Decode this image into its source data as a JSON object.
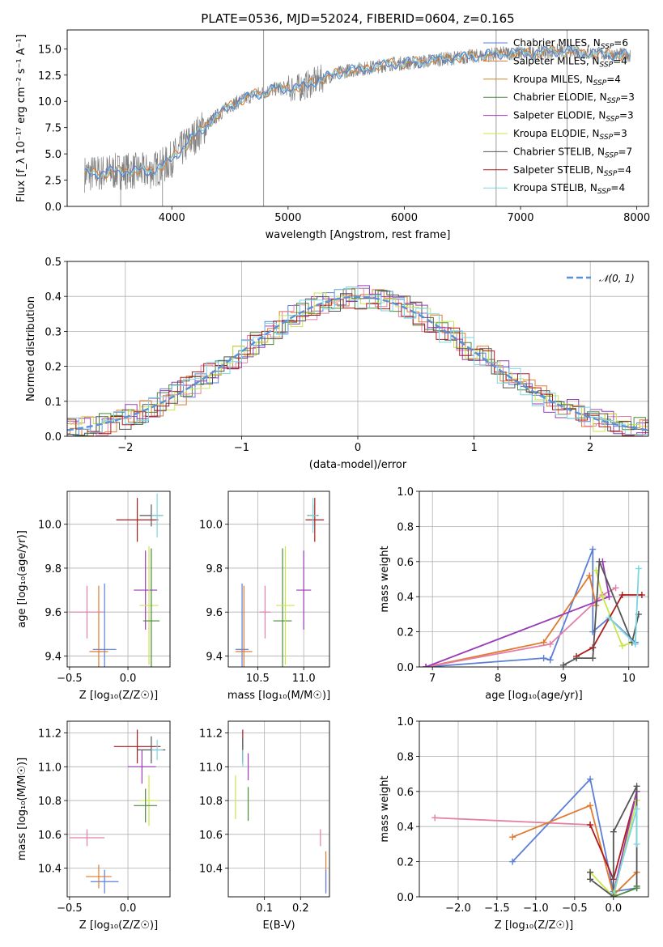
{
  "colors": {
    "chabrier_miles": "#5b7fd6",
    "salpeter_miles": "#e07a2f",
    "kroupa_miles": "#c98a2a",
    "chabrier_elodie": "#4a8a3a",
    "salpeter_elodie": "#9b3bb8",
    "kroupa_elodie": "#c8e64a",
    "chabrier_stelib": "#555555",
    "salpeter_stelib": "#b01a1a",
    "kroupa_stelib": "#7ad6e0",
    "pink": "#e57fa8",
    "gauss": "#5b8fd6"
  },
  "chart_data": [
    {
      "id": "spectrum",
      "type": "line",
      "title": "PLATE=0536, MJD=52024, FIBERID=0604, z=0.165",
      "xlabel": "wavelength [Angstrom, rest frame]",
      "ylabel": "Flux [f_λ 10⁻¹⁷ erg cm⁻² s⁻¹ A⁻¹]",
      "xlim": [
        3100,
        8100
      ],
      "ylim": [
        0,
        16.8
      ],
      "xticks": [
        "4000",
        "5000",
        "6000",
        "7000",
        "8000"
      ],
      "yticks": [
        "0.0",
        "2.5",
        "5.0",
        "7.5",
        "10.0",
        "12.5",
        "15.0"
      ],
      "legend_position": "right",
      "legend": [
        {
          "label": "Chabrier MILES, N",
          "sub": "SSP",
          "value": "=6"
        },
        {
          "label": "Salpeter MILES, N",
          "sub": "SSP",
          "value": "=4"
        },
        {
          "label": "Kroupa MILES, N",
          "sub": "SSP",
          "value": "=4"
        },
        {
          "label": "Chabrier ELODIE, N",
          "sub": "SSP",
          "value": "=3"
        },
        {
          "label": "Salpeter ELODIE, N",
          "sub": "SSP",
          "value": "=3"
        },
        {
          "label": "Kroupa ELODIE, N",
          "sub": "SSP",
          "value": "=3"
        },
        {
          "label": "Chabrier STELIB, N",
          "sub": "SSP",
          "value": "=7"
        },
        {
          "label": "Salpeter STELIB, N",
          "sub": "SSP",
          "value": "=4"
        },
        {
          "label": "Kroupa STELIB, N",
          "sub": "SSP",
          "value": "=4"
        }
      ],
      "continuum": {
        "x": [
          3250,
          3400,
          3600,
          3800,
          3950,
          4100,
          4300,
          4500,
          4700,
          4900,
          5100,
          5300,
          5500,
          5700,
          5900,
          6100,
          6300,
          6500,
          6700,
          6900,
          7100,
          7300,
          7500,
          7700,
          7900
        ],
        "y": [
          3.1,
          3.2,
          3.4,
          3.3,
          4.0,
          5.6,
          7.8,
          9.6,
          10.6,
          11.2,
          11.3,
          12.2,
          12.9,
          13.2,
          13.6,
          13.7,
          14.0,
          14.2,
          14.4,
          14.6,
          14.6,
          14.8,
          14.7,
          14.5,
          14.4
        ]
      }
    },
    {
      "id": "residuals",
      "type": "line",
      "xlabel": "(data-model)/error",
      "ylabel": "Normed distribution",
      "xlim": [
        -2.5,
        2.5
      ],
      "ylim": [
        0,
        0.5
      ],
      "xticks": [
        "−2",
        "−1",
        "0",
        "1",
        "2"
      ],
      "yticks": [
        "0.0",
        "0.1",
        "0.2",
        "0.3",
        "0.4",
        "0.5"
      ],
      "legend": "𝒩(0, 1)",
      "legend_position": "top-right",
      "grid": true
    },
    {
      "id": "age_vs_Z",
      "type": "scatter",
      "xlabel": "Z [log₁₀(Z/Z☉)]",
      "ylabel": "age  [log₁₀(age/yr)]",
      "xlim": [
        -0.52,
        0.36
      ],
      "ylim": [
        9.35,
        10.15
      ],
      "xticks": [
        "−0.5",
        "0.0"
      ],
      "yticks": [
        "9.4",
        "9.6",
        "9.8",
        "10.0"
      ],
      "grid": true,
      "points": [
        {
          "c": "chabrier_miles",
          "x": -0.2,
          "y": 9.43,
          "ex": 0.1,
          "ey": 0.3
        },
        {
          "c": "salpeter_miles",
          "x": -0.25,
          "y": 9.42,
          "ex": 0.08,
          "ey": 0.3
        },
        {
          "c": "pink",
          "x": -0.35,
          "y": 9.6,
          "ex": 0.15,
          "ey": 0.12
        },
        {
          "c": "salpeter_stelib",
          "x": 0.08,
          "y": 10.02,
          "ex": 0.18,
          "ey": 0.1
        },
        {
          "c": "chabrier_stelib",
          "x": 0.2,
          "y": 10.04,
          "ex": 0.1,
          "ey": 0.05
        },
        {
          "c": "kroupa_stelib",
          "x": 0.25,
          "y": 10.04,
          "ex": 0.05,
          "ey": 0.1
        },
        {
          "c": "salpeter_elodie",
          "x": 0.15,
          "y": 9.7,
          "ex": 0.1,
          "ey": 0.18
        },
        {
          "c": "kroupa_elodie",
          "x": 0.18,
          "y": 9.63,
          "ex": 0.08,
          "ey": 0.27
        },
        {
          "c": "chabrier_elodie",
          "x": 0.2,
          "y": 9.56,
          "ex": 0.07,
          "ey": 0.33
        }
      ]
    },
    {
      "id": "age_vs_mass",
      "type": "scatter",
      "xlabel": "mass [log₁₀(M/M☉)]",
      "ylabel": "",
      "xlim": [
        10.18,
        11.28
      ],
      "ylim": [
        9.35,
        10.15
      ],
      "xticks": [
        "10.5",
        "11.0"
      ],
      "yticks": [
        "9.4",
        "9.6",
        "9.8",
        "10.0"
      ],
      "grid": true,
      "points": [
        {
          "c": "chabrier_miles",
          "x": 10.33,
          "y": 9.43,
          "ex": 0.07,
          "ey": 0.3
        },
        {
          "c": "salpeter_miles",
          "x": 10.35,
          "y": 9.42,
          "ex": 0.09,
          "ey": 0.3
        },
        {
          "c": "pink",
          "x": 10.58,
          "y": 9.6,
          "ex": 0.06,
          "ey": 0.12
        },
        {
          "c": "chabrier_elodie",
          "x": 10.77,
          "y": 9.56,
          "ex": 0.1,
          "ey": 0.33
        },
        {
          "c": "kroupa_elodie",
          "x": 10.8,
          "y": 9.63,
          "ex": 0.1,
          "ey": 0.27
        },
        {
          "c": "salpeter_elodie",
          "x": 11.0,
          "y": 9.7,
          "ex": 0.08,
          "ey": 0.18
        },
        {
          "c": "salpeter_stelib",
          "x": 11.12,
          "y": 10.02,
          "ex": 0.1,
          "ey": 0.1
        },
        {
          "c": "chabrier_stelib",
          "x": 11.1,
          "y": 10.04,
          "ex": 0.06,
          "ey": 0.05
        },
        {
          "c": "kroupa_stelib",
          "x": 11.1,
          "y": 10.04,
          "ex": 0.05,
          "ey": 0.08
        }
      ]
    },
    {
      "id": "weight_vs_age",
      "type": "line",
      "xlabel": "age  [log₁₀(age/yr)]",
      "ylabel": "mass weight",
      "xlim": [
        6.8,
        10.3
      ],
      "ylim": [
        0,
        1
      ],
      "xticks": [
        "7",
        "8",
        "9",
        "10"
      ],
      "yticks": [
        "0.0",
        "0.2",
        "0.4",
        "0.6",
        "0.8",
        "1.0"
      ],
      "grid": true,
      "series": [
        {
          "c": "chabrier_miles",
          "x": [
            6.9,
            8.7,
            8.8,
            9.45,
            9.45,
            9.7,
            10.1
          ],
          "y": [
            0.0,
            0.05,
            0.04,
            0.67,
            0.2,
            0.28,
            0.14
          ]
        },
        {
          "c": "salpeter_miles",
          "x": [
            6.9,
            8.7,
            9.4,
            9.5
          ],
          "y": [
            0.0,
            0.14,
            0.52,
            0.35
          ]
        },
        {
          "c": "pink",
          "x": [
            6.9,
            8.8,
            9.6,
            9.8
          ],
          "y": [
            0.0,
            0.13,
            0.41,
            0.45
          ]
        },
        {
          "c": "salpeter_elodie",
          "x": [
            6.9,
            9.7,
            9.6
          ],
          "y": [
            0.0,
            0.4,
            0.6
          ]
        },
        {
          "c": "kroupa_elodie",
          "x": [
            9.5,
            9.6,
            9.9,
            10.05
          ],
          "y": [
            0.55,
            0.4,
            0.12,
            0.14
          ]
        },
        {
          "c": "salpeter_stelib",
          "x": [
            9.2,
            9.45,
            9.9,
            10.2
          ],
          "y": [
            0.06,
            0.11,
            0.41,
            0.41
          ]
        },
        {
          "c": "chabrier_stelib",
          "x": [
            9.0,
            9.2,
            9.45,
            9.55,
            10.05,
            10.15
          ],
          "y": [
            0.01,
            0.05,
            0.05,
            0.6,
            0.14,
            0.3
          ]
        },
        {
          "c": "kroupa_stelib",
          "x": [
            9.7,
            10.1,
            10.15
          ],
          "y": [
            0.28,
            0.13,
            0.56
          ]
        }
      ]
    },
    {
      "id": "mass_vs_Z",
      "type": "scatter",
      "xlabel": "Z [log₁₀(Z/Z☉)]",
      "ylabel": "mass [log₁₀(M/M☉)]",
      "xlim": [
        -0.52,
        0.36
      ],
      "ylim": [
        10.23,
        11.27
      ],
      "xticks": [
        "−0.5",
        "0.0"
      ],
      "yticks": [
        "10.4",
        "10.6",
        "10.8",
        "11.0",
        "11.2"
      ],
      "grid": true,
      "points": [
        {
          "c": "chabrier_miles",
          "x": -0.2,
          "y": 10.32,
          "ex": 0.12,
          "ey": 0.07
        },
        {
          "c": "salpeter_miles",
          "x": -0.25,
          "y": 10.35,
          "ex": 0.11,
          "ey": 0.07
        },
        {
          "c": "pink",
          "x": -0.35,
          "y": 10.58,
          "ex": 0.15,
          "ey": 0.05
        },
        {
          "c": "salpeter_stelib",
          "x": 0.08,
          "y": 11.12,
          "ex": 0.2,
          "ey": 0.1
        },
        {
          "c": "chabrier_stelib",
          "x": 0.2,
          "y": 11.1,
          "ex": 0.12,
          "ey": 0.08
        },
        {
          "c": "kroupa_stelib",
          "x": 0.25,
          "y": 11.1,
          "ex": 0.05,
          "ey": 0.06
        },
        {
          "c": "salpeter_elodie",
          "x": 0.12,
          "y": 11.0,
          "ex": 0.12,
          "ey": 0.1
        },
        {
          "c": "kroupa_elodie",
          "x": 0.18,
          "y": 10.8,
          "ex": 0.08,
          "ey": 0.15
        },
        {
          "c": "chabrier_elodie",
          "x": 0.15,
          "y": 10.77,
          "ex": 0.1,
          "ey": 0.1
        }
      ]
    },
    {
      "id": "mass_vs_ebv",
      "type": "scatter",
      "xlabel": "E(B-V)",
      "ylabel": "",
      "xlim": [
        0.0,
        0.28
      ],
      "ylim": [
        10.23,
        11.27
      ],
      "xticks": [
        "0.1",
        "0.2"
      ],
      "yticks": [
        "10.4",
        "10.6",
        "10.8",
        "11.0",
        "11.2"
      ],
      "grid": true,
      "points": [
        {
          "c": "salpeter_stelib",
          "x": 0.04,
          "y": 11.12,
          "ex": 0,
          "ey": 0.1
        },
        {
          "c": "chabrier_stelib",
          "x": 0.04,
          "y": 11.1,
          "ex": 0,
          "ey": 0.07
        },
        {
          "c": "kroupa_stelib",
          "x": 0.04,
          "y": 11.05,
          "ex": 0,
          "ey": 0.05
        },
        {
          "c": "salpeter_elodie",
          "x": 0.055,
          "y": 11.0,
          "ex": 0,
          "ey": 0.08
        },
        {
          "c": "kroupa_elodie",
          "x": 0.02,
          "y": 10.82,
          "ex": 0,
          "ey": 0.13
        },
        {
          "c": "chabrier_elodie",
          "x": 0.055,
          "y": 10.78,
          "ex": 0,
          "ey": 0.1
        },
        {
          "c": "pink",
          "x": 0.255,
          "y": 10.58,
          "ex": 0,
          "ey": 0.05
        },
        {
          "c": "salpeter_miles",
          "x": 0.27,
          "y": 10.38,
          "ex": 0,
          "ey": 0.12
        },
        {
          "c": "chabrier_miles",
          "x": 0.27,
          "y": 10.32,
          "ex": 0,
          "ey": 0.07
        }
      ]
    },
    {
      "id": "weight_vs_Z",
      "type": "line",
      "xlabel": "Z [log₁₀(Z/Z☉)]",
      "ylabel": "mass weight",
      "xlim": [
        -2.5,
        0.45
      ],
      "ylim": [
        0,
        1
      ],
      "xticks": [
        "−2.0",
        "−1.5",
        "−1.0",
        "−0.5",
        "0.0"
      ],
      "yticks": [
        "0.0",
        "0.2",
        "0.4",
        "0.6",
        "0.8",
        "1.0"
      ],
      "grid": true,
      "series": [
        {
          "c": "pink",
          "x": [
            -2.3,
            -0.3
          ],
          "y": [
            0.45,
            0.41
          ]
        },
        {
          "c": "chabrier_miles",
          "x": [
            -1.3,
            -0.3,
            0.0,
            0.3
          ],
          "y": [
            0.2,
            0.67,
            0.03,
            0.05
          ]
        },
        {
          "c": "salpeter_miles",
          "x": [
            -1.3,
            -0.3,
            0.0,
            0.3
          ],
          "y": [
            0.34,
            0.52,
            0.01,
            0.14
          ]
        },
        {
          "c": "salpeter_stelib",
          "x": [
            -0.3,
            0.0,
            0.3
          ],
          "y": [
            0.41,
            0.1,
            0.6
          ]
        },
        {
          "c": "salpeter_elodie",
          "x": [
            0.0,
            0.3
          ],
          "y": [
            0.02,
            0.6
          ]
        },
        {
          "c": "kroupa_elodie",
          "x": [
            -0.3,
            0.0,
            0.3
          ],
          "y": [
            0.14,
            0.0,
            0.55
          ]
        },
        {
          "c": "chabrier_stelib",
          "x": [
            -0.3,
            -0.3,
            0.0,
            0.0,
            0.3,
            0.3
          ],
          "y": [
            0.14,
            0.1,
            0.0,
            0.37,
            0.63,
            0.06
          ]
        },
        {
          "c": "kroupa_stelib",
          "x": [
            0.0,
            0.3,
            0.3
          ],
          "y": [
            0.02,
            0.5,
            0.3
          ]
        },
        {
          "c": "chabrier_elodie",
          "x": [
            0.0,
            0.3
          ],
          "y": [
            0.0,
            0.05
          ]
        }
      ]
    }
  ]
}
